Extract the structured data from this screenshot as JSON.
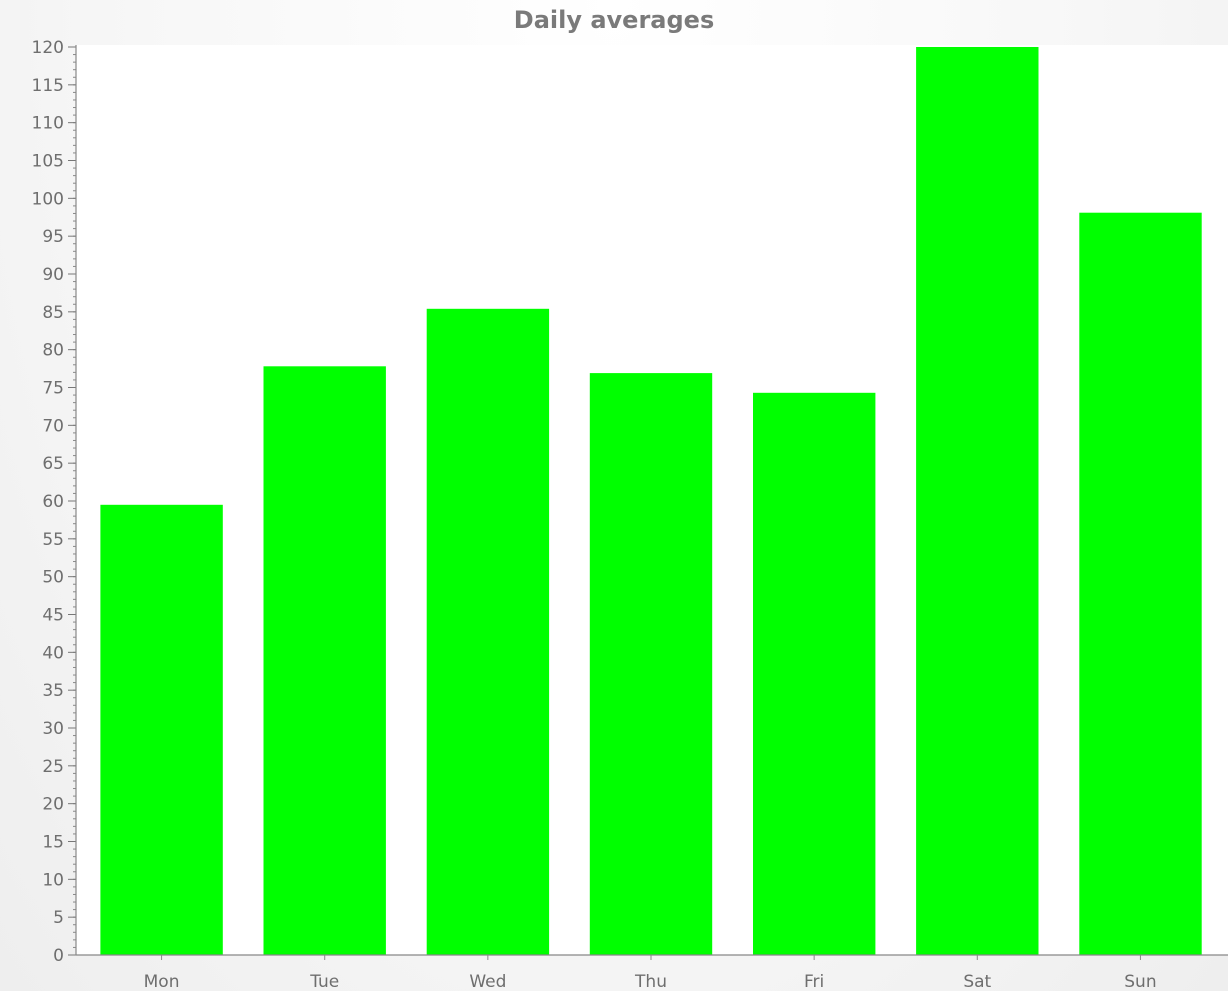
{
  "chart_data": {
    "type": "bar",
    "title": "Daily averages",
    "xlabel": "",
    "ylabel": "",
    "categories": [
      "Mon",
      "Tue",
      "Wed",
      "Thu",
      "Fri",
      "Sat",
      "Sun"
    ],
    "values": [
      59.5,
      77.8,
      85.4,
      76.9,
      74.3,
      120,
      98.1
    ],
    "ylim": [
      0,
      120
    ],
    "ytick_step": 5,
    "grid": false,
    "legend": "none",
    "bar_color": "#00ff00"
  }
}
